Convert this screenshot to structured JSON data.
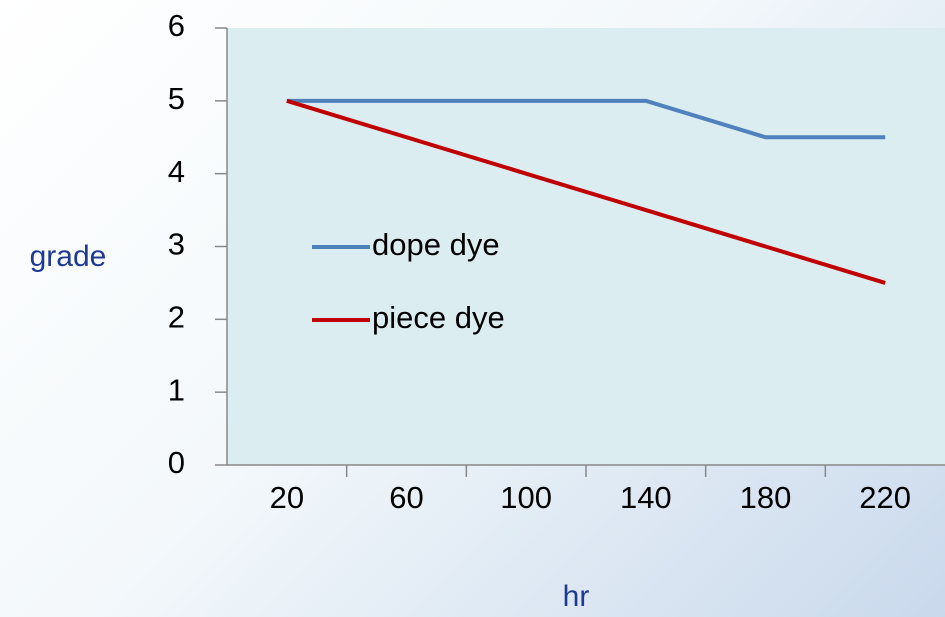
{
  "chart_data": {
    "type": "line",
    "categories": [
      20,
      60,
      100,
      140,
      180,
      220
    ],
    "series": [
      {
        "name": "dope dye",
        "color": "#4f81bd",
        "values": [
          5,
          5,
          5,
          5,
          4.5,
          4.5
        ]
      },
      {
        "name": "piece dye",
        "color": "#c00000",
        "values": [
          5,
          4.5,
          4,
          3.5,
          3,
          2.5
        ]
      }
    ],
    "xlabel": "hr",
    "ylabel": "grade",
    "ylim": [
      0,
      6
    ],
    "yticks": [
      0,
      1,
      2,
      3,
      4,
      5,
      6
    ],
    "grid": false,
    "legend": "left"
  }
}
